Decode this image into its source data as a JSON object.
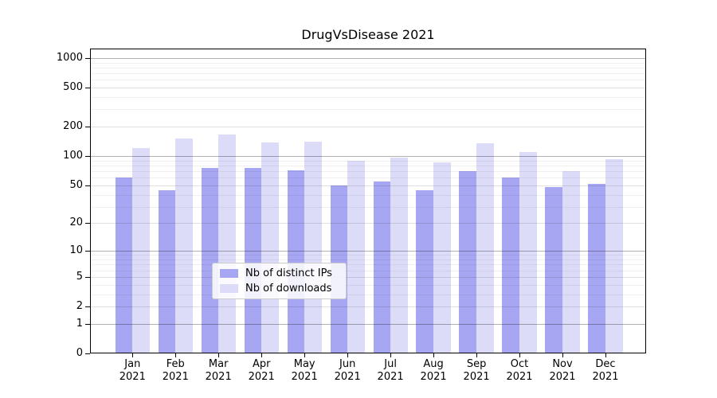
{
  "chart_data": {
    "type": "bar",
    "title": "DrugVsDisease 2021",
    "categories": [
      "Jan",
      "Feb",
      "Mar",
      "Apr",
      "May",
      "Jun",
      "Jul",
      "Aug",
      "Sep",
      "Oct",
      "Nov",
      "Dec"
    ],
    "x_year_label": "2021",
    "series": [
      {
        "name": "Nb of distinct IPs",
        "color": "#a6a6f2",
        "values": [
          60,
          44,
          75,
          75,
          71,
          50,
          55,
          44,
          70,
          60,
          48,
          52
        ]
      },
      {
        "name": "Nb of downloads",
        "color": "#dcdcf8",
        "values": [
          120,
          150,
          165,
          138,
          140,
          89,
          97,
          86,
          134,
          110,
          70,
          93
        ]
      }
    ],
    "y_axis": {
      "scale": "log1p",
      "ticks": [
        0,
        1,
        2,
        5,
        10,
        20,
        50,
        100,
        200,
        500,
        1000
      ],
      "minor_ticks": [
        3,
        4,
        6,
        7,
        8,
        9,
        30,
        40,
        60,
        70,
        80,
        90,
        300,
        400,
        600,
        700,
        800,
        900
      ],
      "max": 1246
    },
    "grid": true,
    "legend_position": "lower center"
  },
  "style": {
    "background": "#ffffff",
    "bar_color_distinct_ips": "#a6a6f2",
    "bar_color_downloads": "#dcdcf8",
    "spine_color": "#000000",
    "text_color": "#000000"
  }
}
